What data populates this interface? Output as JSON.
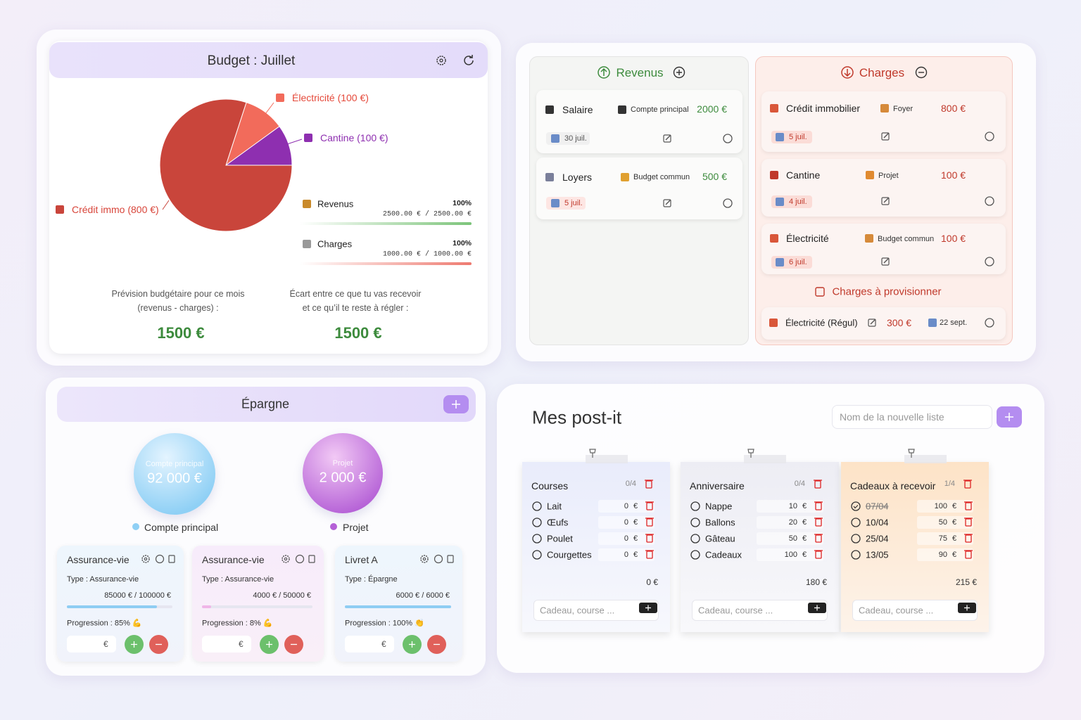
{
  "chart_data": {
    "type": "pie",
    "categories": [
      "Électricité (100 €)",
      "Cantine (100 €)",
      "Crédit immo (800 €)"
    ],
    "values": [
      100,
      100,
      800
    ],
    "colors": [
      "#f26b5b",
      "#8e2fb0",
      "#c9453b"
    ]
  },
  "budget": {
    "title": "Budget : Juillet",
    "progress": [
      {
        "name": "Revenus",
        "value": 100,
        "value_label": "100%",
        "amount": "2500.00 € / 2500.00 €",
        "color": "#7cc47a"
      },
      {
        "name": "Charges",
        "value": 100,
        "value_label": "100%",
        "amount": "1000.00 € / 1000.00 €",
        "color": "#ee7a70"
      }
    ],
    "summary": [
      {
        "text": [
          "Prévision budgétaire pour ce mois",
          "(revenus - charges) :"
        ],
        "amount": "1500 €"
      },
      {
        "text": [
          "Écart entre ce que tu vas recevoir",
          "et ce qu’il te reste à régler :"
        ],
        "amount": "1500 €"
      }
    ]
  },
  "revenus": {
    "title": "Revenus",
    "items": [
      {
        "name": "Salaire",
        "account": "Compte principal",
        "amount": "2000 €",
        "date": "30 juil."
      },
      {
        "name": "Loyers",
        "account": "Budget commun",
        "amount": "500 €",
        "date": "5 juil."
      }
    ]
  },
  "charges": {
    "title": "Charges",
    "items": [
      {
        "name": "Crédit immobilier",
        "account": "Foyer",
        "amount": "800 €",
        "date": "5 juil."
      },
      {
        "name": "Cantine",
        "account": "Projet",
        "amount": "100 €",
        "date": "4 juil."
      },
      {
        "name": "Électricité",
        "account": "Budget commun",
        "amount": "100 €",
        "date": "6 juil."
      }
    ],
    "provision": {
      "title": "Charges à provisionner",
      "items": [
        {
          "name": "Électricité (Régul)",
          "amount": "300 €",
          "date": "22 sept."
        }
      ]
    }
  },
  "epargne": {
    "title": "Épargne",
    "currency": "€",
    "accounts": [
      {
        "label": "Compte principal",
        "amount": "92 000 €"
      },
      {
        "label": "Projet",
        "amount": "2 000 €"
      }
    ],
    "cards": [
      {
        "name": "Assurance-vie",
        "type": "Type : Assurance-vie",
        "amounts": "85000 € / 100000 €",
        "progress": 85,
        "progress_label": "Progression : 85% 💪"
      },
      {
        "name": "Assurance-vie",
        "type": "Type : Assurance-vie",
        "amounts": "4000 € / 50000 €",
        "progress": 8,
        "progress_label": "Progression : 8% 💪"
      },
      {
        "name": "Livret A",
        "type": "Type : Épargne",
        "amounts": "6000 € / 6000 €",
        "progress": 100,
        "progress_label": "Progression : 100% 👏"
      }
    ]
  },
  "postit": {
    "title": "Mes post-it",
    "new_list_placeholder": "Nom de la nouvelle liste",
    "currency": "€",
    "item_placeholder": "Cadeau, course ...",
    "lists": [
      {
        "name": "Courses",
        "count": "0/4",
        "total": "0 €",
        "items": [
          {
            "label": "Lait",
            "amount": 0,
            "done": false
          },
          {
            "label": "Œufs",
            "amount": 0,
            "done": false
          },
          {
            "label": "Poulet",
            "amount": 0,
            "done": false
          },
          {
            "label": "Courgettes",
            "amount": 0,
            "done": false
          }
        ]
      },
      {
        "name": "Anniversaire",
        "count": "0/4",
        "total": "180 €",
        "items": [
          {
            "label": "Nappe",
            "amount": 10,
            "done": false
          },
          {
            "label": "Ballons",
            "amount": 20,
            "done": false
          },
          {
            "label": "Gâteau",
            "amount": 50,
            "done": false
          },
          {
            "label": "Cadeaux",
            "amount": 100,
            "done": false
          }
        ]
      },
      {
        "name": "Cadeaux à recevoir",
        "count": "1/4",
        "total": "215 €",
        "items": [
          {
            "label": "07/04",
            "amount": 100,
            "done": true
          },
          {
            "label": "10/04",
            "amount": 50,
            "done": false
          },
          {
            "label": "25/04",
            "amount": 75,
            "done": false
          },
          {
            "label": "13/05",
            "amount": 90,
            "done": false
          }
        ]
      }
    ]
  }
}
